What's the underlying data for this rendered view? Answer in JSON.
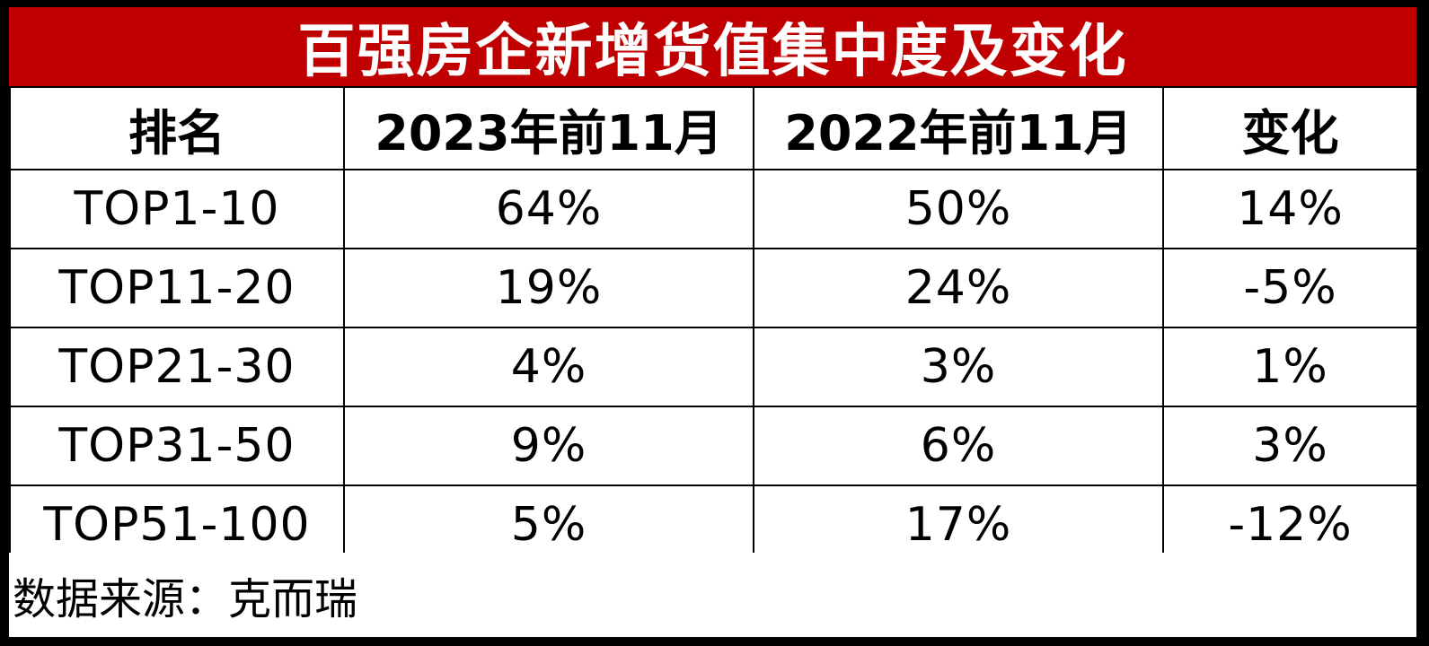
{
  "colors": {
    "title_bg": "#c00000",
    "title_text": "#ffffff",
    "table_bg": "#ffffff",
    "grid": "#000000"
  },
  "chart_data": {
    "type": "table",
    "title": "百强房企新增货值集中度及变化",
    "columns": [
      "排名",
      "2023年前11月",
      "2022年前11月",
      "变化"
    ],
    "rows": [
      [
        "TOP1-10",
        "64%",
        "50%",
        "14%"
      ],
      [
        "TOP11-20",
        "19%",
        "24%",
        "-5%"
      ],
      [
        "TOP21-30",
        "4%",
        "3%",
        "1%"
      ],
      [
        "TOP31-50",
        "9%",
        "6%",
        "3%"
      ],
      [
        "TOP51-100",
        "5%",
        "17%",
        "-12%"
      ]
    ],
    "source": "数据来源：克而瑞"
  }
}
